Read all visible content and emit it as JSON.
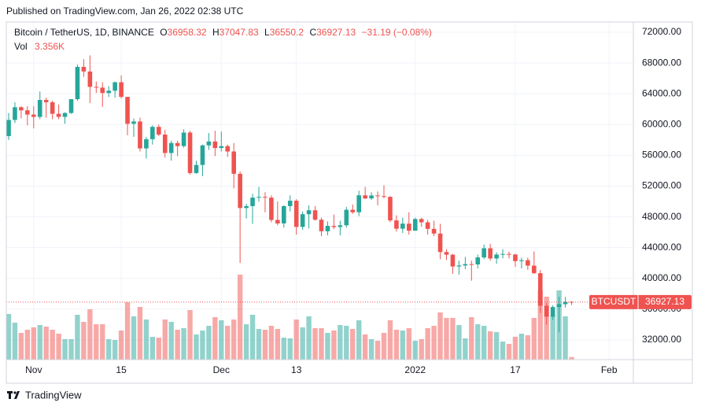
{
  "published": "Published on TradingView.com, Jan 26, 2022 02:38 UTC",
  "brand": "TradingView",
  "header": {
    "symbol": "Bitcoin / TetherUS, 1D, BINANCE",
    "o_label": "O",
    "h_label": "H",
    "l_label": "L",
    "c_label": "C",
    "change": "−31.19 (−0.08%)",
    "vol_label": "Vol",
    "vol_value": "3.356K"
  },
  "chart_data": {
    "type": "candlestick",
    "up_color": "#26a69a",
    "down_color": "#ef5350",
    "grid": true,
    "price_tag_label": "BTCUSDT",
    "x": [
      "2021-10-28",
      "2021-10-29",
      "2021-10-30",
      "2021-10-31",
      "2021-11-01",
      "2021-11-02",
      "2021-11-03",
      "2021-11-04",
      "2021-11-05",
      "2021-11-06",
      "2021-11-07",
      "2021-11-08",
      "2021-11-09",
      "2021-11-10",
      "2021-11-11",
      "2021-11-12",
      "2021-11-13",
      "2021-11-14",
      "2021-11-15",
      "2021-11-16",
      "2021-11-17",
      "2021-11-18",
      "2021-11-19",
      "2021-11-20",
      "2021-11-21",
      "2021-11-22",
      "2021-11-23",
      "2021-11-24",
      "2021-11-25",
      "2021-11-26",
      "2021-11-27",
      "2021-11-28",
      "2021-11-29",
      "2021-11-30",
      "2021-12-01",
      "2021-12-02",
      "2021-12-03",
      "2021-12-04",
      "2021-12-05",
      "2021-12-06",
      "2021-12-07",
      "2021-12-08",
      "2021-12-09",
      "2021-12-10",
      "2021-12-11",
      "2021-12-12",
      "2021-12-13",
      "2021-12-14",
      "2021-12-15",
      "2021-12-16",
      "2021-12-17",
      "2021-12-18",
      "2021-12-19",
      "2021-12-20",
      "2021-12-21",
      "2021-12-22",
      "2021-12-23",
      "2021-12-24",
      "2021-12-25",
      "2021-12-26",
      "2021-12-27",
      "2021-12-28",
      "2021-12-29",
      "2021-12-30",
      "2021-12-31",
      "2022-01-01",
      "2022-01-02",
      "2022-01-03",
      "2022-01-04",
      "2022-01-05",
      "2022-01-06",
      "2022-01-07",
      "2022-01-08",
      "2022-01-09",
      "2022-01-10",
      "2022-01-11",
      "2022-01-12",
      "2022-01-13",
      "2022-01-14",
      "2022-01-15",
      "2022-01-16",
      "2022-01-17",
      "2022-01-18",
      "2022-01-19",
      "2022-01-20",
      "2022-01-21",
      "2022-01-22",
      "2022-01-23",
      "2022-01-24",
      "2022-01-25",
      "2022-01-26"
    ],
    "open": [
      58500,
      60600,
      62250,
      61850,
      61300,
      61000,
      63200,
      62900,
      61400,
      61000,
      61500,
      63300,
      67500,
      66900,
      64900,
      64800,
      64100,
      64400,
      65500,
      63600,
      60100,
      60400,
      56900,
      58100,
      59700,
      58700,
      56300,
      57600,
      57200,
      58960,
      53700,
      54750,
      57300,
      57800,
      56950,
      57200,
      56500,
      53600,
      49150,
      49400,
      50500,
      50600,
      50500,
      47600,
      47150,
      49400,
      50100,
      46700,
      48350,
      48860,
      47630,
      46130,
      46830,
      46680,
      46910,
      48920,
      48600,
      50800,
      50400,
      50780,
      50700,
      50600,
      47540,
      46460,
      47120,
      46200,
      47720,
      47290,
      46440,
      45830,
      43430,
      43080,
      41550,
      41680,
      41860,
      41820,
      42730,
      43920,
      42590,
      43100,
      43180,
      43110,
      42250,
      42370,
      41660,
      40680,
      36450,
      35030,
      36280,
      36650,
      36958.32
    ],
    "high": [
      61500,
      62900,
      62400,
      62400,
      62400,
      64300,
      63500,
      63100,
      62600,
      61600,
      63300,
      67800,
      68500,
      69000,
      65600,
      65500,
      65000,
      65600,
      66400,
      63600,
      60800,
      60900,
      58400,
      59900,
      60000,
      59300,
      57900,
      57900,
      59400,
      59200,
      55300,
      57400,
      58900,
      59200,
      59100,
      57400,
      57600,
      53900,
      49700,
      51000,
      51900,
      51200,
      50800,
      50000,
      49500,
      50800,
      50300,
      48700,
      49500,
      49400,
      47900,
      47400,
      48300,
      47500,
      49300,
      49600,
      51400,
      51900,
      51200,
      51300,
      52100,
      50700,
      48200,
      47900,
      48600,
      47900,
      47900,
      47600,
      47500,
      47100,
      43800,
      43200,
      42300,
      42800,
      42300,
      43100,
      44400,
      44500,
      43400,
      43800,
      43500,
      43200,
      42700,
      42700,
      43500,
      41100,
      36800,
      36500,
      37600,
      37600,
      37047.83
    ],
    "low": [
      58000,
      60200,
      60800,
      59900,
      59500,
      60700,
      60900,
      60700,
      60700,
      60100,
      61400,
      63100,
      66200,
      62800,
      64100,
      62300,
      63600,
      63500,
      63400,
      58600,
      58400,
      56500,
      55600,
      57400,
      58500,
      55700,
      55300,
      55900,
      57000,
      53500,
      53600,
      53300,
      56700,
      55900,
      56500,
      55800,
      51700,
      42000,
      47800,
      47100,
      50000,
      48600,
      47300,
      46900,
      46600,
      48700,
      45700,
      46300,
      46500,
      47500,
      45500,
      45600,
      46400,
      45600,
      46600,
      48400,
      48100,
      50300,
      50200,
      49500,
      50400,
      47300,
      46100,
      45900,
      45700,
      46200,
      46700,
      45700,
      45500,
      42500,
      42400,
      40600,
      40500,
      41200,
      39700,
      41300,
      42500,
      42300,
      41900,
      42600,
      42600,
      41500,
      41300,
      41100,
      40600,
      35500,
      34000,
      34600,
      33000,
      36200,
      36550.2
    ],
    "close": [
      60600,
      62250,
      61850,
      61300,
      61000,
      63200,
      62900,
      61400,
      61000,
      61500,
      63300,
      67500,
      66900,
      64900,
      64800,
      64100,
      64400,
      65500,
      63600,
      60100,
      60400,
      56900,
      58100,
      59700,
      58700,
      56300,
      57600,
      57200,
      58960,
      53700,
      54750,
      57300,
      57800,
      56950,
      57200,
      56500,
      53600,
      49150,
      49400,
      50500,
      50600,
      50500,
      47600,
      47150,
      49400,
      50100,
      46700,
      48350,
      48860,
      47630,
      46130,
      46830,
      46680,
      46910,
      48920,
      48600,
      50800,
      50400,
      50780,
      50700,
      50600,
      47540,
      46460,
      47120,
      46200,
      47720,
      47290,
      46440,
      45830,
      43430,
      43080,
      41550,
      41680,
      41860,
      41820,
      42730,
      43920,
      42590,
      43100,
      43180,
      43110,
      42250,
      42370,
      41660,
      40680,
      36450,
      35030,
      36280,
      36650,
      36960,
      36927.13
    ],
    "volume": [
      58000,
      47000,
      34000,
      38000,
      41000,
      44000,
      42000,
      38000,
      33000,
      26000,
      26000,
      57000,
      48000,
      64000,
      45000,
      45000,
      26000,
      25000,
      37000,
      73000,
      55000,
      67000,
      51000,
      29000,
      28000,
      51000,
      48000,
      38000,
      40000,
      63000,
      32000,
      37000,
      43000,
      54000,
      50000,
      43000,
      51000,
      108000,
      45000,
      57000,
      39000,
      38000,
      43000,
      39000,
      28000,
      27000,
      51000,
      41000,
      55000,
      40000,
      40000,
      34000,
      37000,
      44000,
      43000,
      39000,
      50000,
      32000,
      26000,
      24000,
      34000,
      50000,
      38000,
      37000,
      40000,
      24000,
      26000,
      40000,
      43000,
      60000,
      53000,
      53000,
      44000,
      27000,
      54000,
      45000,
      43000,
      36000,
      35000,
      23000,
      20000,
      29000,
      33000,
      31000,
      53000,
      88000,
      80000,
      56000,
      88000,
      55000,
      3356
    ],
    "ylim": [
      29440,
      73330
    ],
    "yticks": [
      {
        "value": 32000,
        "label": "32000.00"
      },
      {
        "value": 36000,
        "label": "36000.00"
      },
      {
        "value": 40000,
        "label": "40000.00"
      },
      {
        "value": 44000,
        "label": "44000.00"
      },
      {
        "value": 48000,
        "label": "48000.00"
      },
      {
        "value": 52000,
        "label": "52000.00"
      },
      {
        "value": 56000,
        "label": "56000.00"
      },
      {
        "value": 60000,
        "label": "60000.00"
      },
      {
        "value": 64000,
        "label": "64000.00"
      },
      {
        "value": 68000,
        "label": "68000.00"
      },
      {
        "value": 72000,
        "label": "72000.00"
      }
    ],
    "xticks": [
      {
        "value": "2021-11-01",
        "label": "Nov"
      },
      {
        "value": "2021-11-15",
        "label": "15"
      },
      {
        "value": "2021-12-01",
        "label": "Dec"
      },
      {
        "value": "2021-12-13",
        "label": "13"
      },
      {
        "value": "2022-01-01",
        "label": "2022"
      },
      {
        "value": "2022-01-17",
        "label": "17"
      },
      {
        "value": "2022-02-01",
        "label": "Feb"
      }
    ]
  }
}
